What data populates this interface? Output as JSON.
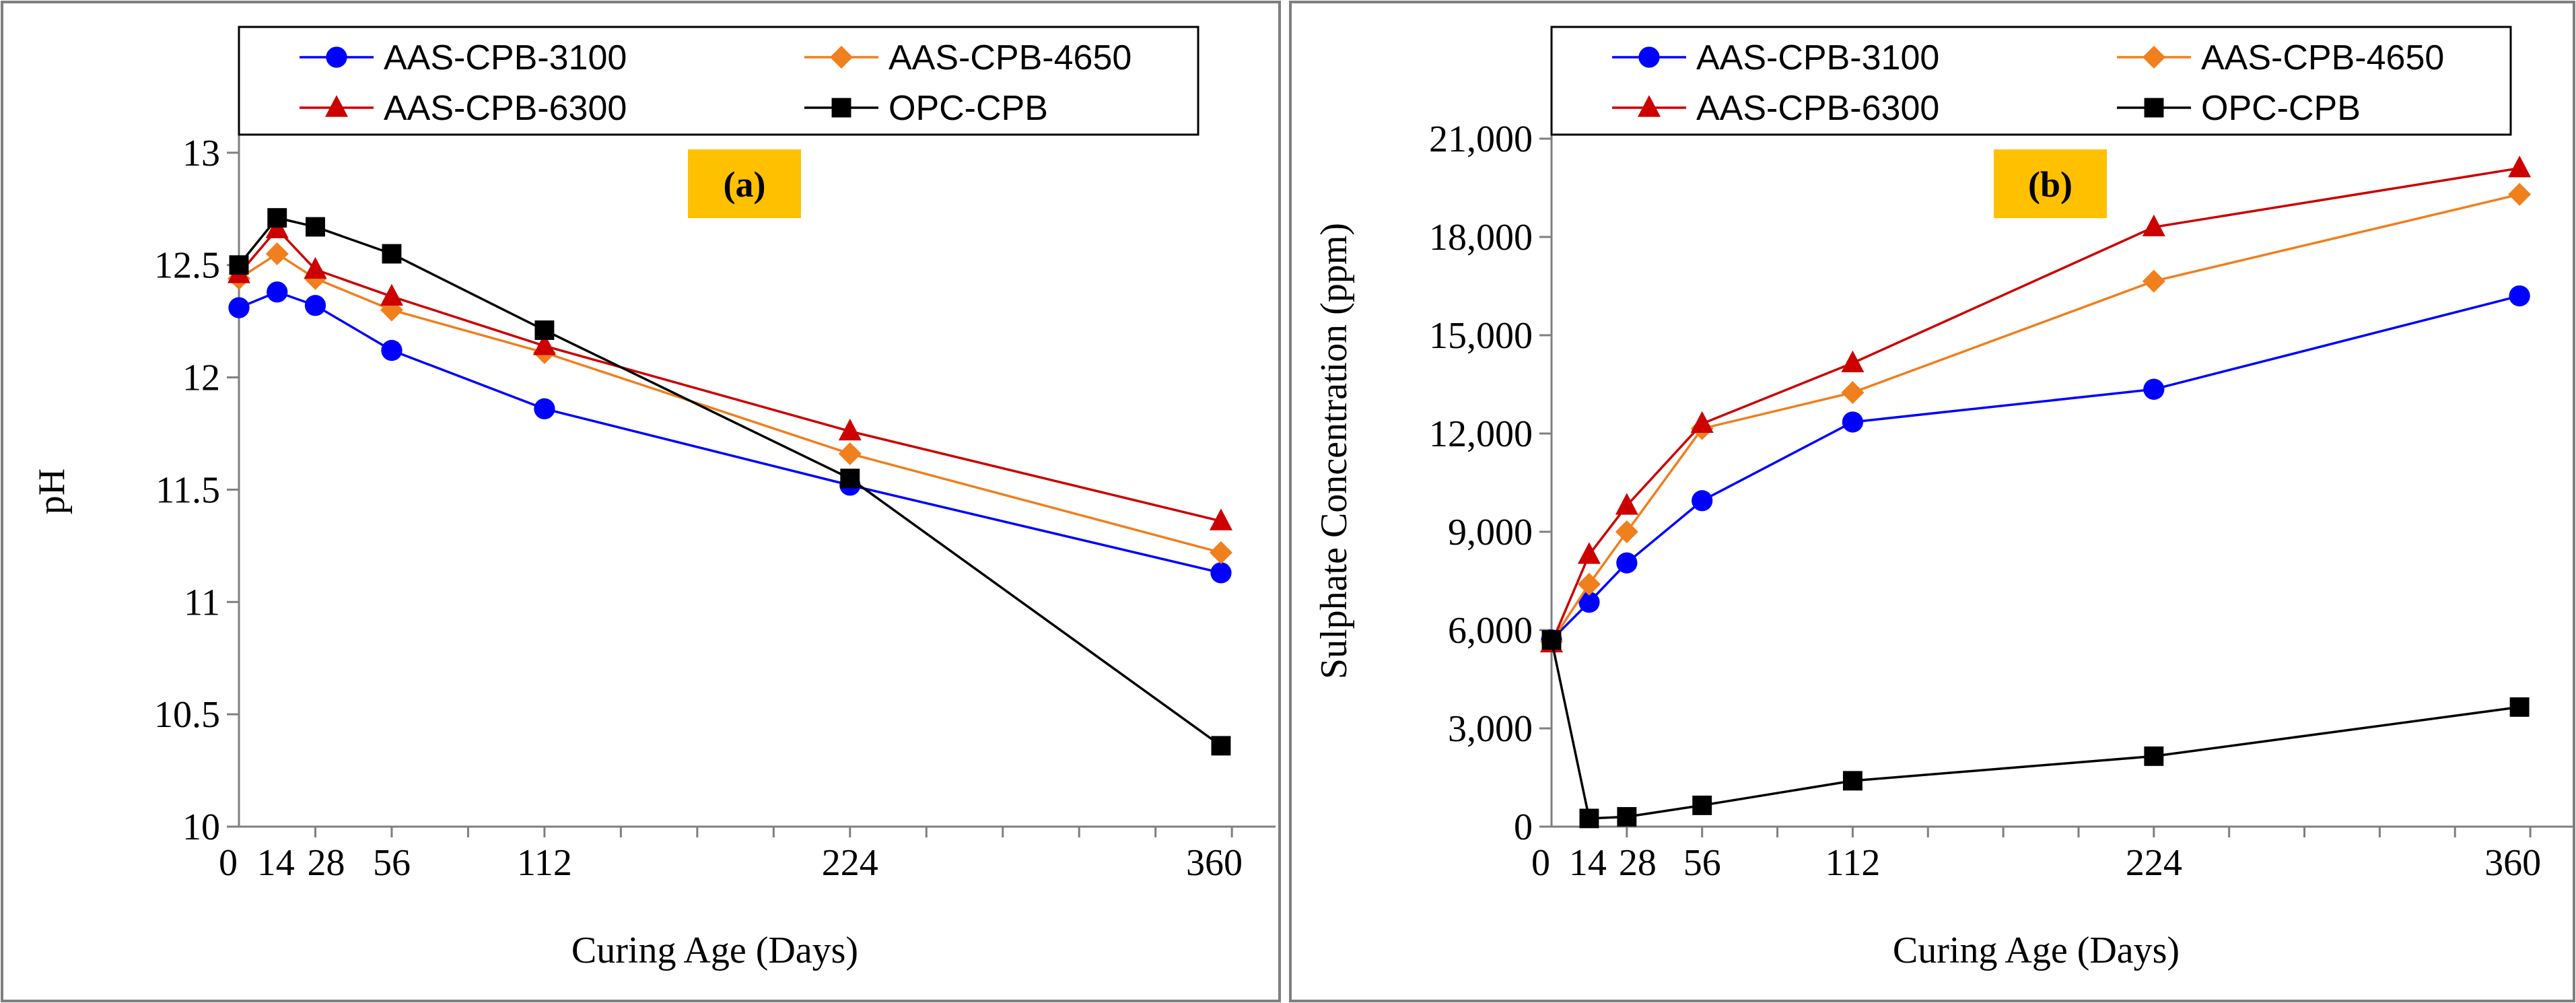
{
  "chart_data": [
    {
      "type": "line",
      "panel_tag": "(a)",
      "xlabel": "Curing Age (Days)",
      "ylabel": "pH",
      "x": [
        0,
        14,
        28,
        56,
        112,
        224,
        360
      ],
      "x_tick_labels": [
        "0",
        "14",
        "28",
        "56",
        "112",
        "224",
        "360"
      ],
      "xlim": [
        0,
        380
      ],
      "ylim": [
        10,
        13.5
      ],
      "y_ticks": [
        10,
        10.5,
        11,
        11.5,
        12,
        12.5,
        13
      ],
      "y_tick_labels": [
        "10",
        "10.5",
        "11",
        "11.5",
        "12",
        "12.5",
        "13"
      ],
      "series": [
        {
          "name": "AAS-CPB-3100",
          "color": "#0000ff",
          "marker": "circle",
          "values": [
            12.31,
            12.38,
            12.32,
            12.12,
            11.86,
            11.52,
            11.13
          ]
        },
        {
          "name": "AAS-CPB-4650",
          "color": "#f07f1e",
          "marker": "diamond",
          "values": [
            12.44,
            12.55,
            12.44,
            12.3,
            12.11,
            11.66,
            11.22
          ]
        },
        {
          "name": "AAS-CPB-6300",
          "color": "#cc0000",
          "marker": "triangle",
          "values": [
            12.46,
            12.66,
            12.48,
            12.36,
            12.14,
            11.76,
            11.36
          ]
        },
        {
          "name": "OPC-CPB",
          "color": "#000000",
          "marker": "square",
          "values": [
            12.5,
            12.71,
            12.67,
            12.55,
            12.21,
            11.55,
            10.36
          ]
        }
      ]
    },
    {
      "type": "line",
      "panel_tag": "(b)",
      "xlabel": "Curing Age (Days)",
      "ylabel": "Sulphate Concentration (ppm)",
      "x": [
        0,
        14,
        28,
        56,
        112,
        224,
        360
      ],
      "x_tick_labels": [
        "0",
        "14",
        "28",
        "56",
        "112",
        "224",
        "360"
      ],
      "xlim": [
        0,
        380
      ],
      "ylim": [
        0,
        24000
      ],
      "y_ticks": [
        0,
        3000,
        6000,
        9000,
        12000,
        15000,
        18000,
        21000
      ],
      "y_tick_labels": [
        "0",
        "3,000",
        "6,000",
        "9,000",
        "12,000",
        "15,000",
        "18,000",
        "21,000"
      ],
      "series": [
        {
          "name": "AAS-CPB-3100",
          "color": "#0000ff",
          "marker": "circle",
          "values": [
            5700,
            6850,
            8050,
            9950,
            12350,
            13350,
            16200
          ]
        },
        {
          "name": "AAS-CPB-4650",
          "color": "#f07f1e",
          "marker": "diamond",
          "values": [
            5650,
            7400,
            9000,
            12150,
            13250,
            16650,
            19300
          ]
        },
        {
          "name": "AAS-CPB-6300",
          "color": "#cc0000",
          "marker": "triangle",
          "values": [
            5600,
            8300,
            9800,
            12300,
            14150,
            18300,
            20100
          ]
        },
        {
          "name": "OPC-CPB",
          "color": "#000000",
          "marker": "square",
          "values": [
            5700,
            250,
            300,
            650,
            1400,
            2150,
            3650
          ]
        }
      ]
    }
  ]
}
